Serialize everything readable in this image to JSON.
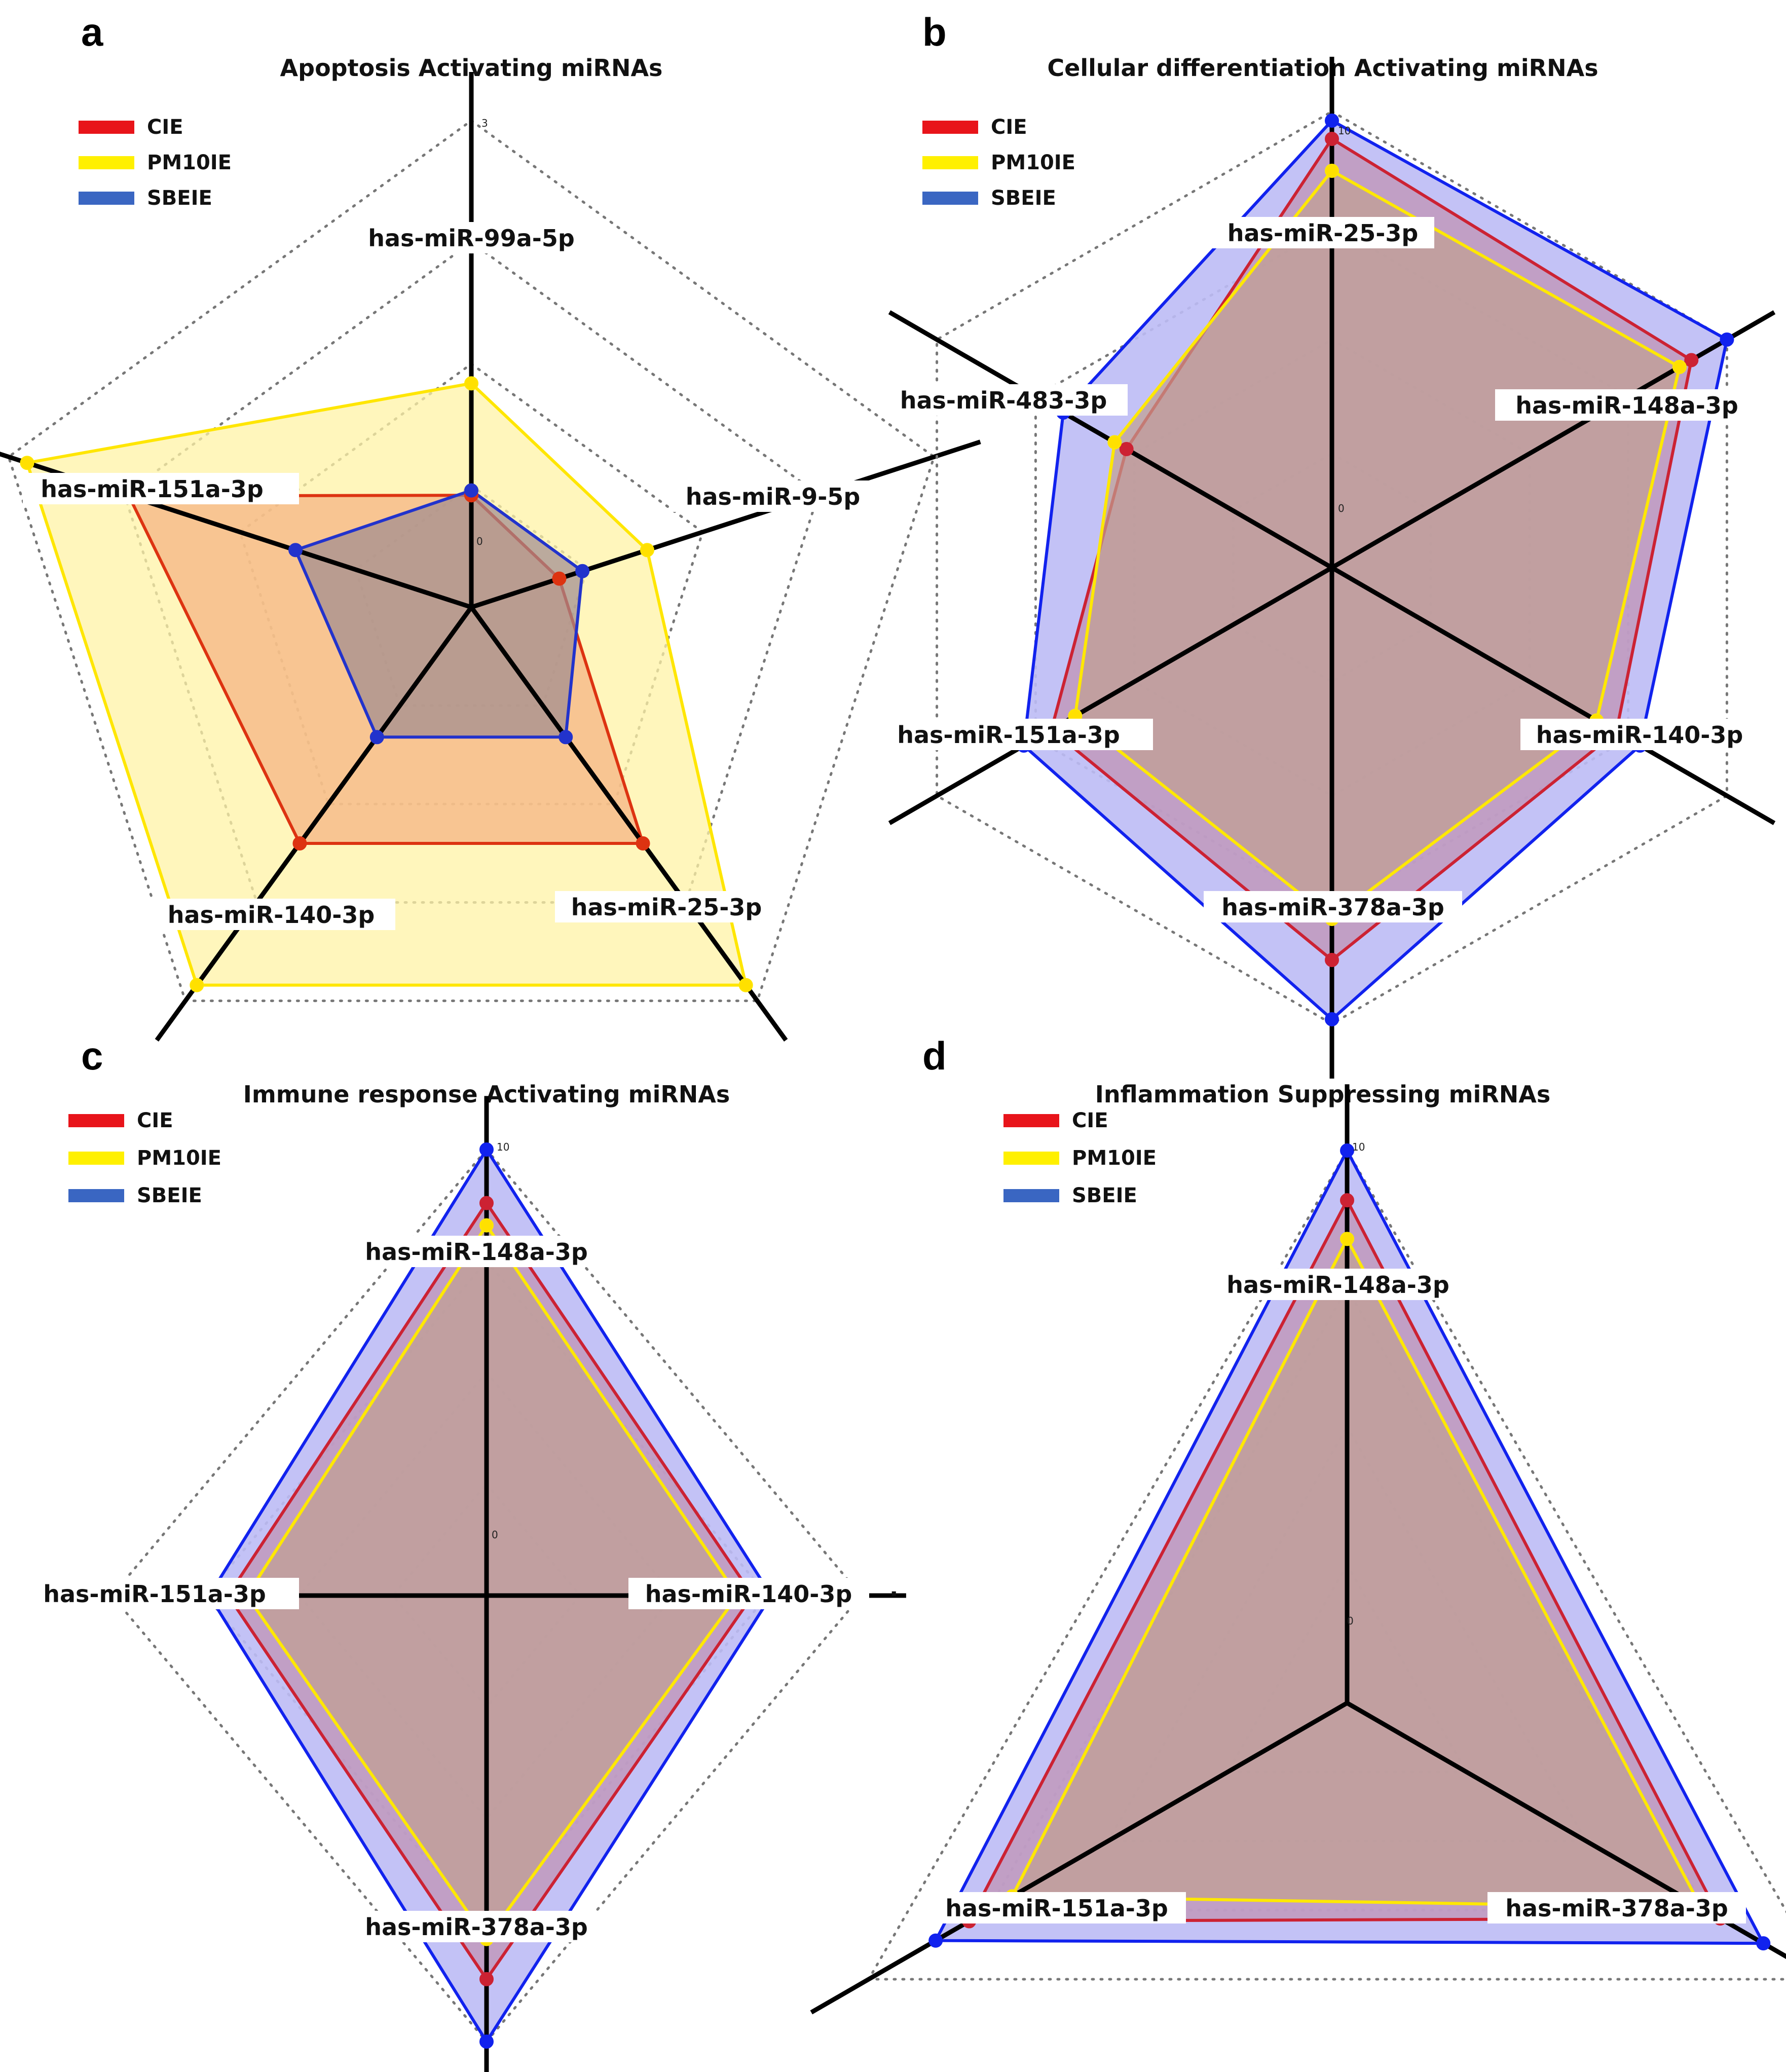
{
  "chart_data": [
    {
      "type": "radar",
      "panel": "a",
      "title": "Apoptosis Activating miRNAs",
      "axes": [
        "has-miR-99a-5p",
        "has-miR-9-5p",
        "has-miR-25-3p",
        "has-miR-140-3p",
        "has-miR-151a-3p"
      ],
      "tick_labels": [
        "3",
        "0"
      ],
      "range": [
        0,
        1
      ],
      "grid_levels": 4,
      "legend": [
        "CIE",
        "PM10IE",
        "SBEIE"
      ],
      "series": [
        {
          "name": "PM10IE",
          "color": "#FFE600",
          "fill": "#FFF3A6",
          "values": [
            0.46,
            0.38,
            0.96,
            0.96,
            0.96
          ]
        },
        {
          "name": "CIE",
          "color": "#DD3311",
          "fill": "#F5B080",
          "values": [
            0.23,
            0.19,
            0.6,
            0.6,
            0.74
          ]
        },
        {
          "name": "SBEIE",
          "color": "#2233CC",
          "fill": "#9E8A90",
          "values": [
            0.24,
            0.24,
            0.33,
            0.33,
            0.38
          ]
        }
      ]
    },
    {
      "type": "radar",
      "panel": "b",
      "title": "Cellular differentiation Activating miRNAs",
      "axes": [
        "has-miR-25-3p",
        "has-miR-148a-3p",
        "has-miR-140-3p",
        "has-miR-378a-3p",
        "has-miR-151a-3p",
        "has-miR-483-3p"
      ],
      "tick_labels": [
        "10",
        "0"
      ],
      "range": [
        0,
        1
      ],
      "grid_levels": 4,
      "legend": [
        "CIE",
        "PM10IE",
        "SBEIE"
      ],
      "series": [
        {
          "name": "SBEIE",
          "color": "#1122EE",
          "fill": "#BDBBF5",
          "values": [
            0.98,
            1.0,
            0.78,
            0.99,
            0.78,
            0.68
          ]
        },
        {
          "name": "CIE",
          "color": "#CC2233",
          "fill": "#C090B0",
          "values": [
            0.94,
            0.91,
            0.72,
            0.86,
            0.71,
            0.52
          ]
        },
        {
          "name": "PM10IE",
          "color": "#FFE800",
          "fill": "#C0A090",
          "values": [
            0.87,
            0.88,
            0.67,
            0.77,
            0.65,
            0.55
          ]
        }
      ]
    },
    {
      "type": "radar",
      "panel": "c",
      "title": "Immune response Activating miRNAs",
      "axes": [
        "has-miR-148a-3p",
        "has-miR-140-3p",
        "has-miR-378a-3p",
        "has-miR-151a-3p"
      ],
      "tick_labels": [
        "10",
        "0"
      ],
      "range": [
        0,
        1
      ],
      "grid_levels": 4,
      "legend": [
        "CIE",
        "PM10IE",
        "SBEIE"
      ],
      "series": [
        {
          "name": "SBEIE",
          "color": "#1122EE",
          "fill": "#BDBBF5",
          "values": [
            1.0,
            0.76,
            1.0,
            0.74
          ]
        },
        {
          "name": "CIE",
          "color": "#CC2233",
          "fill": "#C090B0",
          "values": [
            0.88,
            0.71,
            0.86,
            0.69
          ]
        },
        {
          "name": "PM10IE",
          "color": "#FFE800",
          "fill": "#C0A090",
          "values": [
            0.83,
            0.67,
            0.77,
            0.64
          ]
        }
      ]
    },
    {
      "type": "radar",
      "panel": "d",
      "title": "Inflammation Suppressing miRNAs",
      "axes": [
        "has-miR-148a-3p",
        "has-miR-378a-3p",
        "has-miR-151a-3p"
      ],
      "tick_labels": [
        "10",
        "0"
      ],
      "range": [
        0,
        1
      ],
      "grid_levels": 4,
      "legend": [
        "CIE",
        "PM10IE",
        "SBEIE"
      ],
      "series": [
        {
          "name": "SBEIE",
          "color": "#1122EE",
          "fill": "#BDBBF5",
          "values": [
            1.0,
            0.87,
            0.86
          ]
        },
        {
          "name": "CIE",
          "color": "#CC2233",
          "fill": "#C090B0",
          "values": [
            0.91,
            0.78,
            0.79
          ]
        },
        {
          "name": "PM10IE",
          "color": "#FFE800",
          "fill": "#C0A090",
          "values": [
            0.84,
            0.74,
            0.7
          ]
        }
      ]
    }
  ]
}
